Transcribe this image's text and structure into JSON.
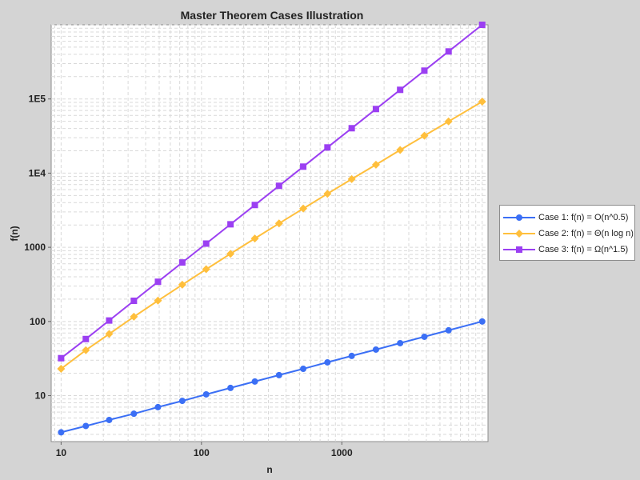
{
  "chart_data": {
    "type": "line",
    "title": "Master Theorem Cases Illustration",
    "xlabel": "n",
    "ylabel": "f(n)",
    "xscale": "log",
    "yscale": "log",
    "xlim": [
      8.5,
      11000
    ],
    "ylim": [
      2.4,
      1000000
    ],
    "x_ticks": [
      10,
      100,
      1000
    ],
    "x_tick_labels": [
      "10",
      "100",
      "1000"
    ],
    "y_ticks": [
      10,
      100,
      1000,
      10000,
      100000
    ],
    "y_tick_labels": [
      "10",
      "100",
      "1000",
      "1E4",
      "1E5"
    ],
    "grid": true,
    "legend_position": "right",
    "x": [
      10,
      15,
      22,
      33,
      49,
      73,
      108,
      161,
      240,
      357,
      531,
      790,
      1176,
      1750,
      2603,
      3873,
      5762,
      10000
    ],
    "series": [
      {
        "name": "Case 1: f(n) = O(n^0.5)",
        "color": "#3b6ff5",
        "marker": "circle",
        "values": [
          3.2,
          3.9,
          4.7,
          5.7,
          7.0,
          8.5,
          10.4,
          12.7,
          15.5,
          18.9,
          23,
          28.1,
          34.3,
          41.8,
          51,
          62.2,
          75.9,
          100
        ]
      },
      {
        "name": "Case 2: f(n) = Θ(n log n)",
        "color": "#ffbf3c",
        "marker": "diamond",
        "values": [
          23,
          41,
          68,
          116,
          191,
          313,
          506,
          818,
          1315,
          2100,
          3332,
          5270,
          8300,
          13000,
          20500,
          32000,
          49800,
          92100
        ]
      },
      {
        "name": "Case 3: f(n) = Ω(n^1.5)",
        "color": "#9b3ff2",
        "marker": "square",
        "values": [
          32,
          58,
          103,
          190,
          343,
          624,
          1122,
          2043,
          3718,
          6745,
          12236,
          22205,
          40326,
          73200,
          132800,
          241000,
          437400,
          1000000
        ]
      }
    ]
  }
}
